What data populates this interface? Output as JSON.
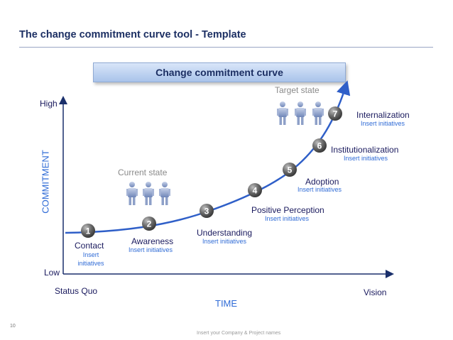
{
  "slide": {
    "title": "The change commitment curve tool - Template",
    "banner": "Change commitment curve",
    "page_number": "10",
    "footer_note": "Insert your Company & Project names"
  },
  "axes": {
    "y_title": "COMMITMENT",
    "y_high": "High",
    "y_low": "Low",
    "x_title": "TIME",
    "x_start": "Status Quo",
    "x_end": "Vision"
  },
  "states": {
    "current": "Current state",
    "target": "Target state"
  },
  "stages": [
    {
      "number": "1",
      "name": "Contact",
      "sub": "Insert initiatives"
    },
    {
      "number": "2",
      "name": "Awareness",
      "sub": "Insert initiatives"
    },
    {
      "number": "3",
      "name": "Understanding",
      "sub": "Insert initiatives"
    },
    {
      "number": "4",
      "name": "Positive Perception",
      "sub": "Insert initiatives"
    },
    {
      "number": "5",
      "name": "Adoption",
      "sub": "Insert initiatives"
    },
    {
      "number": "6",
      "name": "Institutionalization",
      "sub": "Insert initiatives"
    },
    {
      "number": "7",
      "name": "Internalization",
      "sub": "Insert initiatives"
    }
  ],
  "colors": {
    "curve": "#2f5fc8",
    "axis": "#1a2f6b",
    "circle": "#6b6b6b",
    "person": "#6f86b8"
  },
  "icons": {
    "people_group": "person-icon"
  }
}
